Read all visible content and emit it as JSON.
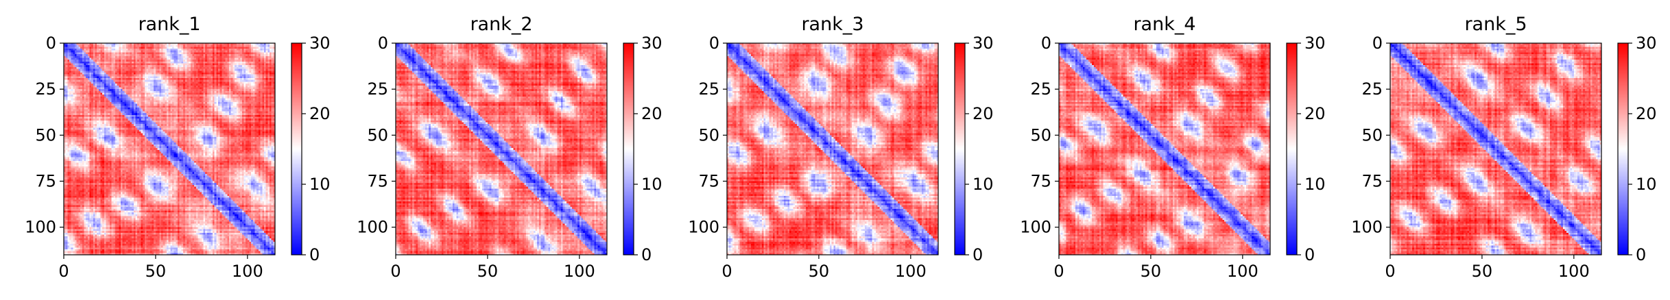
{
  "chart_data": [
    {
      "type": "heatmap",
      "title": "rank_1",
      "pattern": {
        "period": 27,
        "shift": 0,
        "blob_width": 5.5,
        "seed": 11
      },
      "xlim": [
        0,
        115
      ],
      "ylim": [
        115,
        0
      ],
      "x_ticks": [
        0,
        50,
        100
      ],
      "y_ticks": [
        0,
        25,
        50,
        75,
        100
      ],
      "colorbar": {
        "range": [
          0,
          30
        ],
        "ticks": [
          0,
          10,
          20,
          30
        ],
        "colormap": "bwr"
      }
    },
    {
      "type": "heatmap",
      "title": "rank_2",
      "pattern": {
        "period": 29,
        "shift": 9,
        "blob_width": 4.5,
        "seed": 23
      },
      "xlim": [
        0,
        115
      ],
      "ylim": [
        115,
        0
      ],
      "x_ticks": [
        0,
        50,
        100
      ],
      "y_ticks": [
        0,
        25,
        50,
        75,
        100
      ],
      "colorbar": {
        "range": [
          0,
          30
        ],
        "ticks": [
          0,
          10,
          20,
          30
        ],
        "colormap": "bwr"
      }
    },
    {
      "type": "heatmap",
      "title": "rank_3",
      "pattern": {
        "period": 27,
        "shift": 3,
        "blob_width": 6.0,
        "seed": 37
      },
      "xlim": [
        0,
        115
      ],
      "ylim": [
        115,
        0
      ],
      "x_ticks": [
        0,
        50,
        100
      ],
      "y_ticks": [
        0,
        25,
        50,
        75,
        100
      ],
      "colorbar": {
        "range": [
          0,
          30
        ],
        "ticks": [
          0,
          10,
          20,
          30
        ],
        "colormap": "bwr"
      }
    },
    {
      "type": "heatmap",
      "title": "rank_4",
      "pattern": {
        "period": 26,
        "shift": 6,
        "blob_width": 5.0,
        "seed": 41
      },
      "xlim": [
        0,
        115
      ],
      "ylim": [
        115,
        0
      ],
      "x_ticks": [
        0,
        50,
        100
      ],
      "y_ticks": [
        0,
        25,
        50,
        75,
        100
      ],
      "colorbar": {
        "range": [
          0,
          30
        ],
        "ticks": [
          0,
          10,
          20,
          30
        ],
        "colormap": "bwr"
      }
    },
    {
      "type": "heatmap",
      "title": "rank_5",
      "pattern": {
        "period": 28,
        "shift": 12,
        "blob_width": 5.0,
        "seed": 53
      },
      "xlim": [
        0,
        115
      ],
      "ylim": [
        115,
        0
      ],
      "x_ticks": [
        0,
        50,
        100
      ],
      "y_ticks": [
        0,
        25,
        50,
        75,
        100
      ],
      "colorbar": {
        "range": [
          0,
          30
        ],
        "ticks": [
          0,
          10,
          20,
          30
        ],
        "colormap": "bwr"
      }
    }
  ],
  "colors": {
    "low": "#0000ff",
    "mid": "#ffffff",
    "high": "#ff0000",
    "axis": "#000000"
  }
}
